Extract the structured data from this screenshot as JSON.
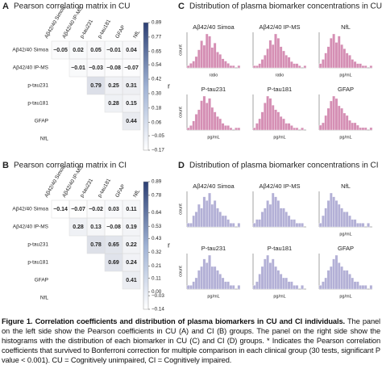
{
  "panel_a": {
    "letter": "A",
    "title": "Pearson correlation matrix in CU",
    "labels": [
      "Aβ42/40 Simoa",
      "Aβ42/40 IP-MS",
      "p-tau231",
      "p-tau181",
      "GFAP",
      "NfL"
    ],
    "rows": [
      [
        -0.05,
        0.02,
        0.05,
        -0.01,
        0.04
      ],
      [
        -0.01,
        -0.03,
        -0.08,
        -0.07
      ],
      [
        0.79,
        0.25,
        0.31
      ],
      [
        0.28,
        0.15
      ],
      [
        0.44
      ],
      []
    ],
    "value_labels": [
      [
        "−0.05",
        "0.02",
        "0.05",
        "−0.01",
        "0.04"
      ],
      [
        "−0.01",
        "−0.03",
        "−0.08",
        "−0.07"
      ],
      [
        "0.79",
        "0.25",
        "0.31"
      ],
      [
        "0.28",
        "0.15"
      ],
      [
        "0.44"
      ],
      []
    ],
    "colorbar": {
      "label": "r",
      "lim": [
        -0.17,
        0.89
      ],
      "ticks": [
        0.89,
        0.77,
        0.65,
        0.54,
        0.42,
        {
          "value": 0.3,
          "label": "0.30"
        },
        0.18,
        0.06,
        {
          "value": -0.05,
          "label": "−0.05"
        },
        {
          "value": -0.17,
          "label": "−0.17"
        }
      ]
    }
  },
  "panel_b": {
    "letter": "B",
    "title": "Pearson correlation matrix in CI",
    "labels": [
      "Aβ42/40 Simoa",
      "Aβ42/40 IP-MS",
      "p-tau231",
      "p-tau181",
      "GFAP",
      "NfL"
    ],
    "rows": [
      [
        -0.14,
        -0.07,
        -0.02,
        0.03,
        0.11
      ],
      [
        0.28,
        0.13,
        -0.08,
        0.19
      ],
      [
        0.78,
        0.65,
        0.22
      ],
      [
        0.69,
        0.24
      ],
      [
        0.41
      ],
      []
    ],
    "value_labels": [
      [
        "−0.14",
        "−0.07",
        "−0.02",
        "0.03",
        "0.11"
      ],
      [
        "0.28",
        "0.13",
        "−0.08",
        "0.19"
      ],
      [
        "0.78",
        "0.65",
        "0.22"
      ],
      [
        "0.69",
        "0.24"
      ],
      [
        "0.41"
      ],
      []
    ],
    "colorbar": {
      "label": "r",
      "lim": [
        -0.14,
        0.89
      ],
      "ticks": [
        0.89,
        0.78,
        0.64,
        0.53,
        0.43,
        0.32,
        0.21,
        0.11,
        {
          "value": 0,
          "label": "0.00"
        },
        {
          "value": -0.03,
          "label": "−0.03"
        },
        {
          "value": -0.14,
          "label": "−0.14"
        }
      ]
    }
  },
  "panel_c": {
    "letter": "C",
    "title": "Distribution of plasma biomarker concentrations in CU",
    "color": "#d58fb4",
    "plots": [
      {
        "title": "Aβ42/40 Simoa",
        "ylabel": "count",
        "xlabel": "ratio",
        "counts": [
          1,
          2,
          3,
          5,
          8,
          12,
          10,
          15,
          14,
          9,
          11,
          7,
          6,
          4,
          3,
          2,
          1,
          1,
          0,
          1
        ]
      },
      {
        "title": "Aβ42/40 IP-MS",
        "xlabel": "ratio",
        "counts": [
          1,
          1,
          2,
          4,
          6,
          9,
          13,
          11,
          16,
          14,
          10,
          8,
          6,
          5,
          3,
          2,
          2,
          1,
          0,
          1
        ]
      },
      {
        "title": "NfL",
        "xlabel": "pg/mL",
        "counts": [
          2,
          4,
          7,
          10,
          14,
          16,
          12,
          15,
          11,
          9,
          7,
          6,
          4,
          3,
          2,
          2,
          1,
          1,
          0,
          1
        ]
      },
      {
        "title": "P-tau231",
        "ylabel": "count",
        "xlabel": "pg/mL",
        "counts": [
          1,
          2,
          4,
          7,
          9,
          13,
          15,
          12,
          14,
          10,
          8,
          6,
          5,
          3,
          2,
          2,
          1,
          0,
          1,
          1
        ]
      },
      {
        "title": "P-tau181",
        "xlabel": "pg/mL",
        "counts": [
          1,
          3,
          5,
          8,
          12,
          15,
          14,
          11,
          9,
          8,
          6,
          5,
          3,
          3,
          2,
          1,
          1,
          0,
          1,
          0
        ]
      },
      {
        "title": "GFAP",
        "xlabel": "pg/mL",
        "counts": [
          2,
          3,
          6,
          9,
          12,
          14,
          13,
          10,
          9,
          7,
          6,
          4,
          3,
          3,
          2,
          1,
          1,
          1,
          0,
          1
        ]
      }
    ]
  },
  "panel_d": {
    "letter": "D",
    "title": "Distribution of plasma biomarker concentrations in CI",
    "color": "#b3b0d6",
    "plots": [
      {
        "title": "Aβ42/40 Simoa",
        "ylabel": "count",
        "counts": [
          1,
          1,
          3,
          4,
          6,
          5,
          8,
          7,
          9,
          6,
          7,
          5,
          4,
          3,
          3,
          2,
          1,
          1,
          0,
          1
        ]
      },
      {
        "title": "Aβ42/40 IP-MS",
        "counts": [
          1,
          2,
          2,
          4,
          5,
          7,
          6,
          9,
          8,
          7,
          5,
          5,
          4,
          3,
          2,
          2,
          1,
          1,
          1,
          0
        ]
      },
      {
        "title": "NfL",
        "xlabel": "pg/mL",
        "counts": [
          1,
          3,
          5,
          7,
          9,
          8,
          7,
          6,
          5,
          4,
          4,
          3,
          2,
          2,
          1,
          1,
          1,
          0,
          1,
          0
        ]
      },
      {
        "title": "P-tau231",
        "ylabel": "count",
        "xlabel": "pg/mL",
        "counts": [
          1,
          1,
          2,
          3,
          5,
          6,
          8,
          7,
          9,
          6,
          6,
          5,
          4,
          3,
          2,
          2,
          1,
          1,
          0,
          1
        ]
      },
      {
        "title": "P-tau181",
        "xlabel": "pg/mL",
        "counts": [
          1,
          2,
          4,
          6,
          8,
          9,
          7,
          8,
          6,
          5,
          4,
          3,
          3,
          2,
          2,
          1,
          1,
          0,
          1,
          0
        ]
      },
      {
        "title": "GFAP",
        "xlabel": "pg/mL",
        "counts": [
          1,
          2,
          3,
          5,
          6,
          8,
          9,
          7,
          6,
          5,
          5,
          4,
          3,
          2,
          2,
          1,
          1,
          1,
          0,
          1
        ]
      }
    ]
  },
  "caption": {
    "bold": "Figure 1. Correlation coefficients and distribution of plasma biomarkers in CU and CI individuals.",
    "text": " The panel on the left side show the Pearson coefficients in CU (A) and CI (B) groups. The panel on the right side show the histograms with the distribution of each biomarker in CU (C) and CI (D) groups. * Indicates the Pearson correlation coefficients that survived to Bonferroni correction for multiple comparison in each clinical group (30 tests, significant P value < 0.001). CU = Cognitively unimpaired, CI = Cognitively impaired."
  }
}
